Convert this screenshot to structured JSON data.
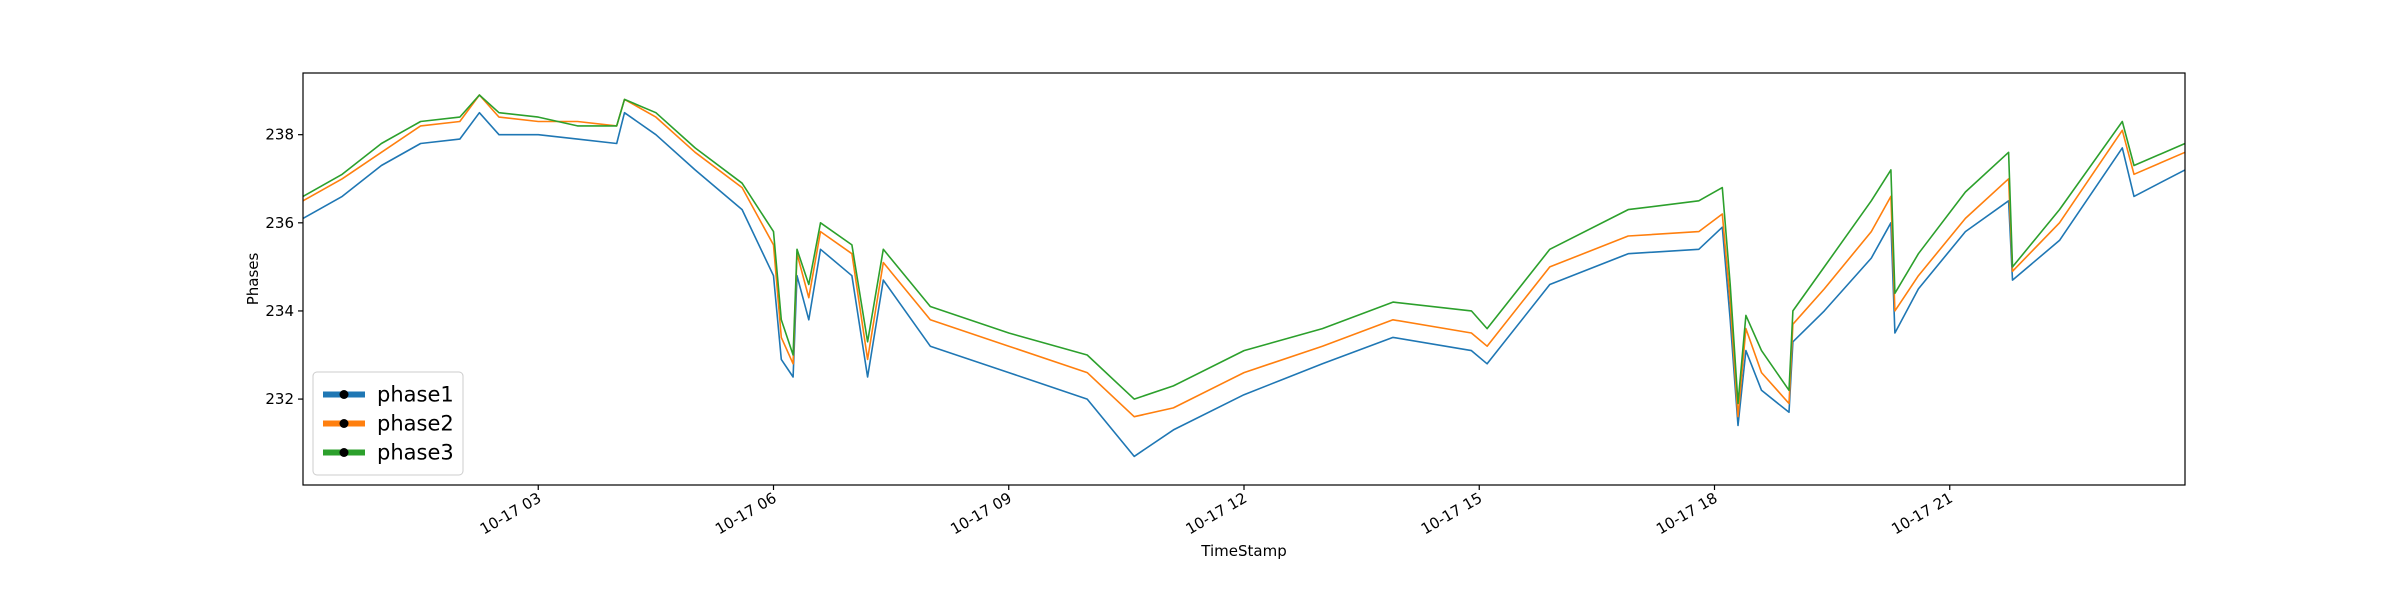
{
  "chart_data": {
    "type": "line",
    "x_label": "TimeStamp",
    "y_label": "Phases",
    "x": [
      0,
      0.5,
      1,
      1.5,
      2,
      2.25,
      2.5,
      3,
      3.5,
      4,
      4.1,
      4.5,
      5,
      5.6,
      6,
      6.1,
      6.25,
      6.3,
      6.45,
      6.6,
      7,
      7.2,
      7.4,
      8,
      9,
      10,
      10.6,
      11.1,
      12,
      13,
      13.9,
      14.9,
      15.1,
      15.9,
      16.9,
      17.8,
      18.1,
      18.2,
      18.3,
      18.4,
      18.6,
      18.95,
      19,
      19.4,
      20,
      20.25,
      20.3,
      20.6,
      21.2,
      21.75,
      21.8,
      22.4,
      23.2,
      23.35,
      24
    ],
    "series": [
      {
        "name": "phase1",
        "color": "#1f77b4",
        "values": [
          236.1,
          236.6,
          237.3,
          237.8,
          237.9,
          238.5,
          238.0,
          238.0,
          237.9,
          237.8,
          238.5,
          238.0,
          237.2,
          236.3,
          234.8,
          232.9,
          232.5,
          234.8,
          233.8,
          235.4,
          234.8,
          232.5,
          234.7,
          233.2,
          232.6,
          232.0,
          230.7,
          231.3,
          232.1,
          232.8,
          233.4,
          233.1,
          232.8,
          234.6,
          235.3,
          235.4,
          235.9,
          233.8,
          231.4,
          233.1,
          232.2,
          231.7,
          233.3,
          234.0,
          235.2,
          236.0,
          233.5,
          234.5,
          235.8,
          236.5,
          234.7,
          235.6,
          237.7,
          236.6,
          237.2
        ]
      },
      {
        "name": "phase2",
        "color": "#ff7f0e",
        "values": [
          236.5,
          237.0,
          237.6,
          238.2,
          238.3,
          238.9,
          238.4,
          238.3,
          238.3,
          238.2,
          238.8,
          238.4,
          237.6,
          236.8,
          235.5,
          233.4,
          232.8,
          235.3,
          234.3,
          235.8,
          235.3,
          232.9,
          235.1,
          233.8,
          233.2,
          232.6,
          231.6,
          231.8,
          232.6,
          233.2,
          233.8,
          233.5,
          233.2,
          235.0,
          235.7,
          235.8,
          236.2,
          234.2,
          231.6,
          233.6,
          232.6,
          231.9,
          233.7,
          234.5,
          235.8,
          236.6,
          234.0,
          234.8,
          236.1,
          237.0,
          234.9,
          236.0,
          238.1,
          237.1,
          237.6
        ]
      },
      {
        "name": "phase3",
        "color": "#2ca02c",
        "values": [
          236.6,
          237.1,
          237.8,
          238.3,
          238.4,
          238.9,
          238.5,
          238.4,
          238.2,
          238.2,
          238.8,
          238.5,
          237.7,
          236.9,
          235.8,
          233.8,
          233.0,
          235.4,
          234.6,
          236.0,
          235.5,
          233.3,
          235.4,
          234.1,
          233.5,
          233.0,
          232.0,
          232.3,
          233.1,
          233.6,
          234.2,
          234.0,
          233.6,
          235.4,
          236.3,
          236.5,
          236.8,
          234.6,
          231.9,
          233.9,
          233.1,
          232.2,
          234.0,
          235.0,
          236.5,
          237.2,
          234.4,
          235.3,
          236.7,
          237.6,
          235.0,
          236.3,
          238.3,
          237.3,
          237.8
        ]
      }
    ],
    "xlim": [
      0,
      24
    ],
    "xticks": [
      {
        "value": 3,
        "label": "10-17 03"
      },
      {
        "value": 6,
        "label": "10-17 06"
      },
      {
        "value": 9,
        "label": "10-17 09"
      },
      {
        "value": 12,
        "label": "10-17 12"
      },
      {
        "value": 15,
        "label": "10-17 15"
      },
      {
        "value": 18,
        "label": "10-17 18"
      },
      {
        "value": 21,
        "label": "10-17 21"
      }
    ],
    "ylim": [
      230.05,
      239.4
    ],
    "yticks": [
      232,
      234,
      236,
      238
    ],
    "legend": "lower left"
  }
}
